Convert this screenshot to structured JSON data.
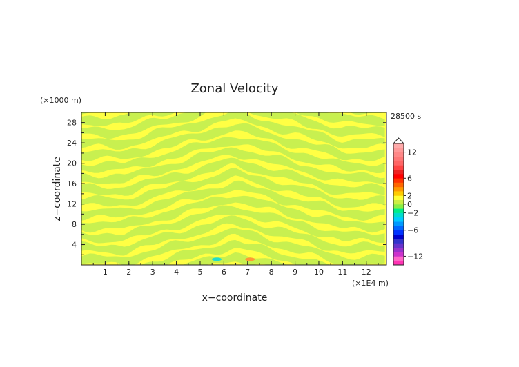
{
  "chart_data": {
    "type": "heatmap",
    "title": "Zonal Velocity",
    "xlabel": "x−coordinate",
    "ylabel": "z−coordinate",
    "x_unit": "(×1E4 m)",
    "y_unit": "(×1000 m)",
    "time_label": "28500 s",
    "xlim": [
      0,
      12.85
    ],
    "ylim": [
      0,
      30
    ],
    "x_ticks": [
      "1",
      "2",
      "3",
      "4",
      "5",
      "6",
      "7",
      "8",
      "9",
      "10",
      "11",
      "12"
    ],
    "y_ticks": [
      "4",
      "8",
      "12",
      "16",
      "20",
      "24",
      "28"
    ],
    "colorbar": {
      "levels": [
        -14,
        -13,
        -12,
        -11,
        -10,
        -9,
        -8,
        -7,
        -6,
        -5,
        -4,
        -3,
        -2,
        -1,
        0,
        1,
        2,
        3,
        4,
        5,
        6,
        7,
        8,
        9,
        10,
        11,
        12,
        13,
        14
      ],
      "tick_labels": [
        "12",
        "6",
        "2",
        "0",
        "−2",
        "−6",
        "−12"
      ],
      "colors": [
        "#ff33b4",
        "#ff66c8",
        "#cc33cc",
        "#9933cc",
        "#6633cc",
        "#3333cc",
        "#0000cc",
        "#0033ff",
        "#0066ff",
        "#0099ff",
        "#00ccff",
        "#00ddcc",
        "#00ee88",
        "#88ee44",
        "#ccee44",
        "#ffff33",
        "#ffcc00",
        "#ff9900",
        "#ff6600",
        "#ff3300",
        "#ff0000",
        "#ee2222",
        "#ff4444",
        "#ff6666",
        "#ff7777",
        "#ff8888",
        "#ff9999",
        "#ffaaaa"
      ]
    },
    "field_colors": {
      "positive": "#ffff44",
      "negative": "#c8f050",
      "cyan_patch": "#22ddcc",
      "orange_patch": "#ff9933"
    }
  }
}
